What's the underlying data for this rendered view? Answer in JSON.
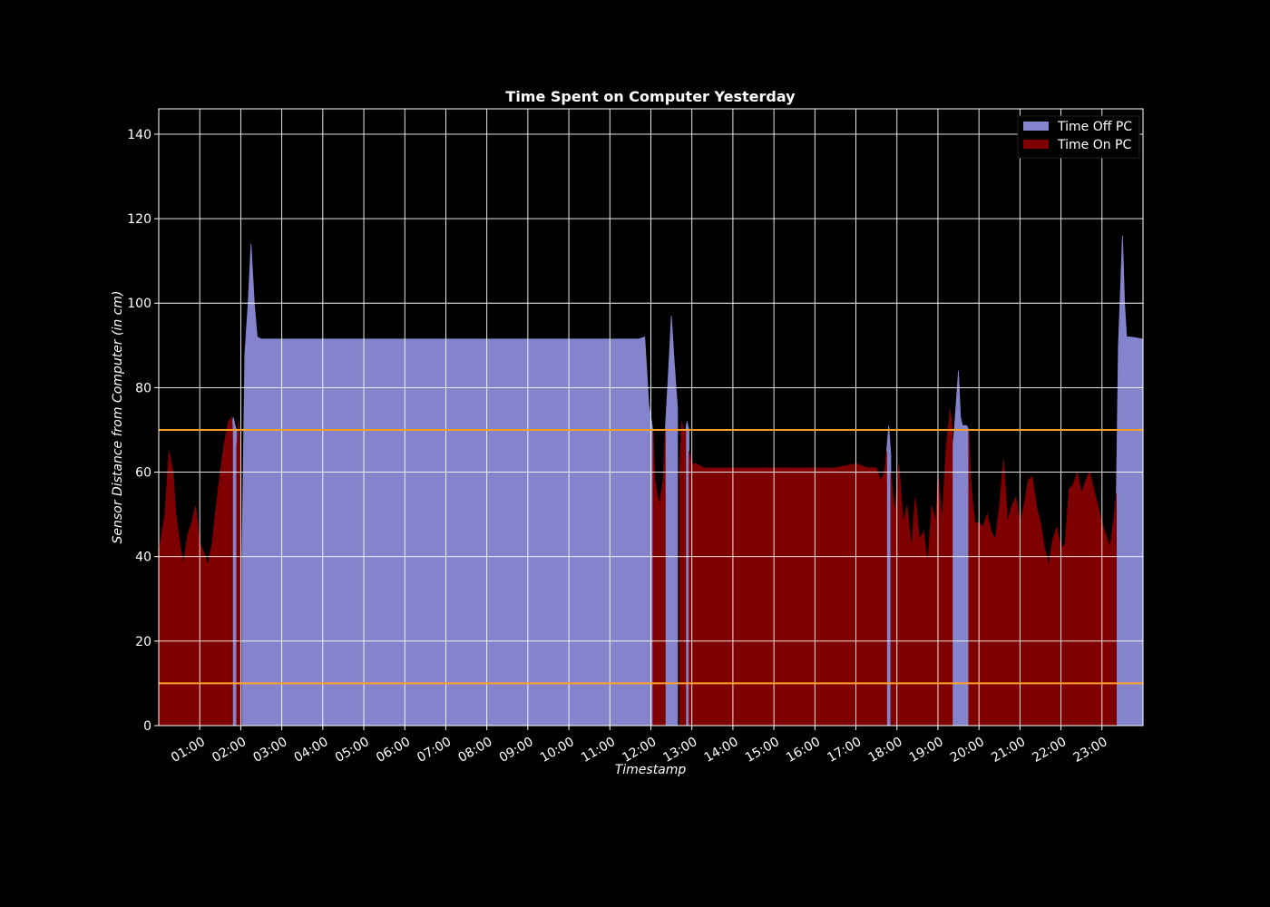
{
  "chart_data": {
    "type": "area",
    "title": "Time Spent on Computer Yesterday",
    "xlabel": "Timestamp",
    "ylabel": "Sensor Distance from Computer (in cm)",
    "xlim": [
      0.0,
      24.0
    ],
    "ylim": [
      0,
      146
    ],
    "x_unit": "hours",
    "x_ticks": [
      1,
      2,
      3,
      4,
      5,
      6,
      7,
      8,
      9,
      10,
      11,
      12,
      13,
      14,
      15,
      16,
      17,
      18,
      19,
      20,
      21,
      22,
      23
    ],
    "x_tick_labels": [
      "01:00",
      "02:00",
      "03:00",
      "04:00",
      "05:00",
      "06:00",
      "07:00",
      "08:00",
      "09:00",
      "10:00",
      "11:00",
      "12:00",
      "13:00",
      "14:00",
      "15:00",
      "16:00",
      "17:00",
      "18:00",
      "19:00",
      "20:00",
      "21:00",
      "22:00",
      "23:00"
    ],
    "y_ticks": [
      0,
      20,
      40,
      60,
      80,
      100,
      120,
      140
    ],
    "grid": true,
    "legend_position": "top-right",
    "thresholds": [
      {
        "y": 70,
        "color": "#ff9f2a"
      },
      {
        "y": 10,
        "color": "#ff9f2a"
      }
    ],
    "series": [
      {
        "name": "Time Off PC",
        "color": "#8484cc",
        "segments": [
          {
            "x": [
              1.8,
              1.82,
              1.86,
              1.9
            ],
            "y": [
              72,
              73,
              71,
              70
            ]
          },
          {
            "x": [
              2.03,
              2.1,
              2.18,
              2.25,
              2.33,
              2.4,
              2.5,
              2.7,
              3.0,
              4.0,
              5.0,
              6.0,
              7.0,
              8.0,
              9.0,
              10.0,
              11.0,
              11.7,
              11.85,
              11.95,
              12.05
            ],
            "y": [
              40,
              88,
              100,
              114,
              100,
              92,
              91.5,
              91.5,
              91.5,
              91.5,
              91.5,
              91.5,
              91.5,
              91.5,
              91.5,
              91.5,
              91.5,
              91.5,
              92,
              76,
              70
            ]
          },
          {
            "x": [
              12.35,
              12.42,
              12.5,
              12.57,
              12.65
            ],
            "y": [
              70,
              82,
              97,
              86,
              75
            ]
          },
          {
            "x": [
              12.85,
              12.88,
              12.93
            ],
            "y": [
              70,
              72,
              70
            ]
          },
          {
            "x": [
              17.75,
              17.8,
              17.85
            ],
            "y": [
              65,
              71,
              64
            ]
          },
          {
            "x": [
              19.35,
              19.4,
              19.5,
              19.55,
              19.6,
              19.7,
              19.75
            ],
            "y": [
              65,
              70,
              84,
              73,
              71,
              71,
              70
            ]
          },
          {
            "x": [
              23.35,
              23.4,
              23.5,
              23.55,
              23.6,
              23.7,
              24.0
            ],
            "y": [
              55,
              90,
              116,
              100,
              92,
              92,
              91.5
            ]
          }
        ]
      },
      {
        "name": "Time On PC",
        "color": "#7f0000",
        "segments": [
          {
            "x": [
              0.0,
              0.05,
              0.15,
              0.25,
              0.35,
              0.42,
              0.5,
              0.6,
              0.7,
              0.8,
              0.9,
              1.0,
              1.1,
              1.2,
              1.3,
              1.4,
              1.5,
              1.6,
              1.7,
              1.78,
              1.8
            ],
            "y": [
              40,
              44,
              50,
              65,
              60,
              50,
              44,
              38,
              45,
              48,
              52,
              43,
              41,
              38,
              43,
              52,
              60,
              67,
              72,
              73,
              70
            ]
          },
          {
            "x": [
              1.9,
              1.95,
              1.98
            ],
            "y": [
              66,
              72,
              67
            ]
          },
          {
            "x": [
              12.05,
              12.1,
              12.2,
              12.3,
              12.35
            ],
            "y": [
              70,
              58,
              52,
              58,
              70
            ]
          },
          {
            "x": [
              12.7,
              12.75,
              12.8,
              12.85
            ],
            "y": [
              60,
              72,
              70,
              70
            ]
          },
          {
            "x": [
              12.93,
              13.0,
              13.1,
              13.2,
              13.3,
              13.5,
              14.0,
              15.0,
              16.0,
              16.5,
              17.0,
              17.3,
              17.5,
              17.6,
              17.7,
              17.75
            ],
            "y": [
              65,
              62,
              62,
              61.5,
              61,
              61,
              61,
              61,
              61,
              61,
              62,
              61,
              61,
              58,
              60,
              65
            ]
          },
          {
            "x": [
              17.85,
              17.95,
              18.05,
              18.15,
              18.25,
              18.35,
              18.45,
              18.55,
              18.65,
              18.75,
              18.85,
              18.95,
              19.0,
              19.1,
              19.2,
              19.3,
              19.35
            ],
            "y": [
              60,
              50,
              62,
              48,
              52,
              42,
              54,
              44,
              46,
              38,
              52,
              48,
              60,
              48,
              66,
              75,
              70
            ]
          },
          {
            "x": [
              19.75,
              19.8,
              19.9,
              20.0,
              20.1,
              20.2,
              20.3,
              20.4,
              20.5,
              20.6,
              20.7,
              20.8,
              20.9,
              21.0,
              21.1,
              21.2,
              21.3,
              21.4,
              21.5,
              21.6,
              21.7,
              21.8,
              21.9,
              22.0,
              22.1,
              22.2,
              22.3,
              22.4,
              22.5,
              22.6,
              22.7,
              22.8,
              22.9,
              23.0,
              23.1,
              23.2,
              23.3,
              23.35
            ],
            "y": [
              70,
              58,
              48,
              48,
              47,
              50,
              46,
              44,
              52,
              63,
              48,
              52,
              54,
              48,
              52,
              58,
              59,
              52,
              48,
              42,
              38,
              44,
              47,
              42,
              43,
              56,
              57,
              60,
              55,
              58,
              60,
              56,
              52,
              48,
              45,
              42,
              50,
              55
            ]
          }
        ]
      }
    ]
  }
}
